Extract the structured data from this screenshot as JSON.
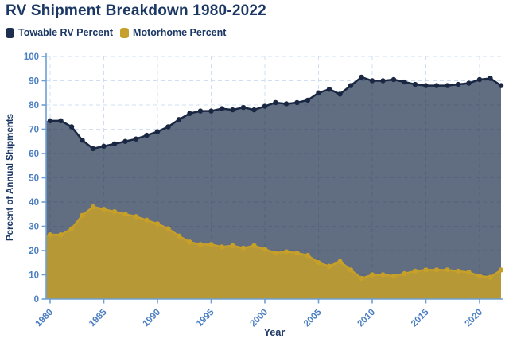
{
  "title": "RV Shipment Breakdown 1980-2022",
  "legend": [
    {
      "label": "Towable RV Percent",
      "color": "#1d2f4e"
    },
    {
      "label": "Motorhome Percent",
      "color": "#c79f2c"
    }
  ],
  "colors": {
    "title_text": "#1b3764",
    "legend_text": "#1b3764",
    "axis": "#6d9fd4",
    "tick_text": "#4a7ec2",
    "axis_title": "#1b3764",
    "grid": "#cfdff1",
    "background": "#ffffff"
  },
  "chart_data": {
    "type": "area",
    "title": "RV Shipment Breakdown 1980-2022",
    "xlabel": "Year",
    "ylabel": "Percent of Annual Shipments",
    "ylim": [
      0,
      100
    ],
    "y_ticks": [
      0,
      10,
      20,
      30,
      40,
      50,
      60,
      70,
      80,
      90,
      100
    ],
    "x_ticks": [
      1980,
      1985,
      1990,
      1995,
      2000,
      2005,
      2010,
      2015,
      2020
    ],
    "grid": "dashed light-blue, horizontal every 10 and vertical every 5 years",
    "legend_position": "top-left",
    "x": [
      1980,
      1981,
      1982,
      1983,
      1984,
      1985,
      1986,
      1987,
      1988,
      1989,
      1990,
      1991,
      1992,
      1993,
      1994,
      1995,
      1996,
      1997,
      1998,
      1999,
      2000,
      2001,
      2002,
      2003,
      2004,
      2005,
      2006,
      2007,
      2008,
      2009,
      2010,
      2011,
      2012,
      2013,
      2014,
      2015,
      2016,
      2017,
      2018,
      2019,
      2020,
      2021,
      2022
    ],
    "series": [
      {
        "name": "Towable RV Percent",
        "color": "#1a2742",
        "fill": "#24344f",
        "fill_opacity": 0.72,
        "values": [
          73.5,
          73.5,
          71,
          65.5,
          62,
          63,
          64,
          65,
          66,
          67.5,
          69,
          71,
          74,
          76.5,
          77.5,
          77.5,
          78.5,
          78,
          79,
          78,
          79.5,
          81,
          80.5,
          81,
          82,
          85,
          86.5,
          84.5,
          88,
          91.5,
          90,
          90,
          90.5,
          89.5,
          88.5,
          88,
          88,
          88,
          88.5,
          89,
          90.5,
          91,
          88
        ]
      },
      {
        "name": "Motorhome Percent",
        "color": "#c7a02a",
        "fill": "#c7a02a",
        "fill_opacity": 0.85,
        "values": [
          26.5,
          26.5,
          29,
          34.5,
          38,
          37,
          36,
          35,
          34,
          32.5,
          31,
          29,
          26,
          23.5,
          22.5,
          22.5,
          21.5,
          22,
          21,
          22,
          20.5,
          19,
          19.5,
          19,
          18,
          15,
          13.5,
          15.5,
          12,
          8.5,
          10,
          10,
          9.5,
          10.5,
          11.5,
          12,
          12,
          12,
          11.5,
          11,
          9.5,
          9,
          12
        ]
      }
    ]
  }
}
